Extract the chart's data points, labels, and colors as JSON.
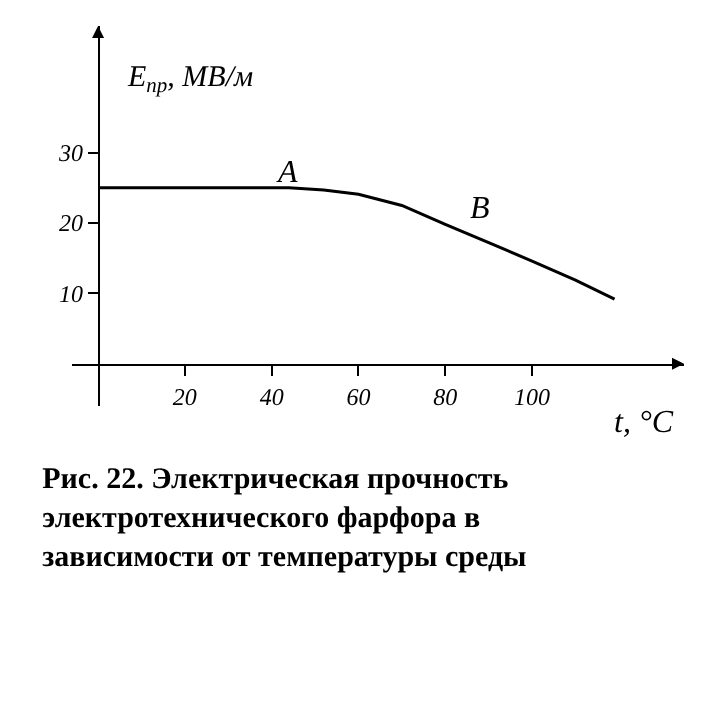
{
  "chart_data": {
    "type": "line",
    "title": "Рис. 22. Электрическая прочность электротехнического фарфора в зависимости от температуры среды",
    "xlabel": "t, °C",
    "ylabel": "E$_{пр}$, МВ/м",
    "series": [
      {
        "color": "#000000",
        "x": [
          0,
          44,
          52,
          60,
          70,
          80,
          90,
          100,
          110,
          119
        ],
        "values": [
          25,
          25,
          24.7,
          24.1,
          22.5,
          19.8,
          17.2,
          14.6,
          11.9,
          9.2
        ]
      }
    ],
    "xlim": [
      -6,
      135
    ],
    "ylim": [
      -6,
      48
    ],
    "xticks": [
      20,
      40,
      60,
      80,
      100
    ],
    "yticks": [
      10,
      20,
      30
    ],
    "annotations": [
      "A",
      "B"
    ],
    "grid": false,
    "marker": "none",
    "line_style": "solid"
  }
}
